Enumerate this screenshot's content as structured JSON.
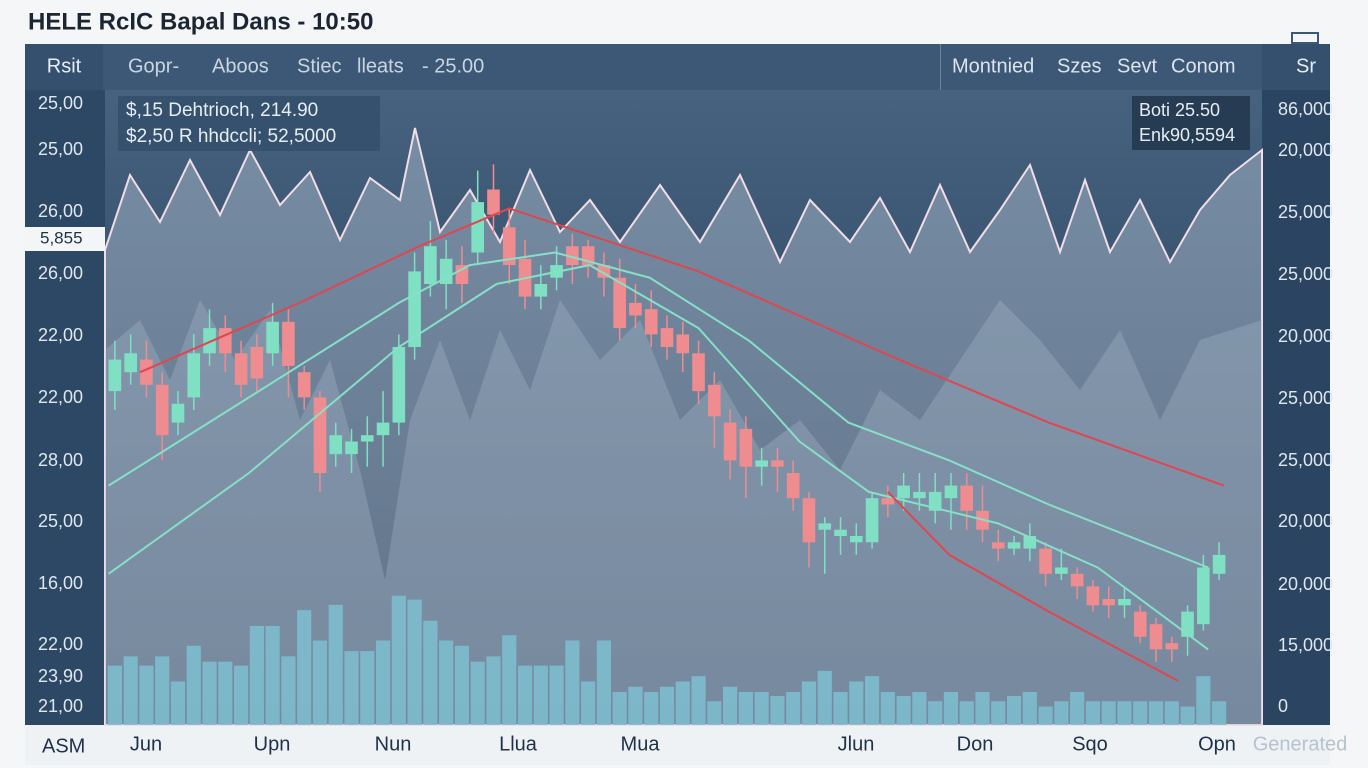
{
  "header": {
    "title": "HELE RcIC Bapal Dans - 10:50"
  },
  "toolbar": {
    "left": [
      "Rsit"
    ],
    "tools": [
      "Gopr-",
      "Aboos",
      "Stiec",
      "lleats",
      "- 25.00"
    ],
    "right": [
      "Montnied",
      "Szes",
      "Sevt",
      "Conom"
    ],
    "corner": "Sr"
  },
  "info_box": [
    "$,15 Dehtrioch, 214.90",
    "$2,50 R hhdccli; 52,5000"
  ],
  "quote_box": [
    "Boti 25.50",
    "Enk90,5594"
  ],
  "left_labels": [
    "25,00",
    "25,00",
    "26,00",
    "26,00",
    "22,00",
    "22,00",
    "28,00",
    "25,00",
    "16,00",
    "22,00",
    "23,90",
    "21,00"
  ],
  "price_marker": "5,855",
  "right_labels": [
    "86,000",
    "20,000",
    "25,000",
    "25,000",
    "20,000",
    "25,000",
    "25,000",
    "20,000",
    "20,000",
    "15,000",
    "0"
  ],
  "bottom_corner": "ASM",
  "x_labels": [
    "Jun",
    "Upn",
    "Nun",
    "Llua",
    "Mua",
    "Jlun",
    "Don",
    "Sqo",
    "Opn"
  ],
  "watermark": "Generated",
  "chart_data": {
    "type": "candlestick",
    "xlim": [
      -0.5,
      70.5
    ],
    "ylim": [
      0,
      100
    ],
    "up_color": "#7fe0c4",
    "down_color": "#ef8c8f",
    "open": [
      53,
      56,
      58,
      54,
      48,
      52,
      59,
      63,
      59,
      60,
      59,
      64,
      56,
      52,
      43,
      43,
      45,
      46,
      48,
      60,
      70,
      70,
      73,
      75,
      85,
      79,
      74,
      68,
      71,
      76,
      76,
      73,
      71,
      67,
      66,
      63,
      62,
      59,
      54,
      48,
      47,
      41,
      42,
      40,
      36,
      31,
      30,
      29,
      29,
      36,
      36,
      36,
      34,
      36,
      38,
      34,
      29,
      28,
      28,
      28,
      24,
      24,
      22,
      20,
      19,
      18,
      16,
      13,
      14,
      16,
      24
    ],
    "high": [
      61,
      62,
      61,
      56,
      53,
      62,
      66,
      65,
      61,
      62,
      67,
      66,
      57,
      53,
      48,
      47,
      49,
      53,
      62,
      75,
      80,
      77,
      76,
      88,
      89,
      82,
      77,
      73,
      76,
      78,
      77,
      75,
      74,
      70,
      69,
      65,
      64,
      61,
      56,
      50,
      49,
      44,
      44,
      42,
      37,
      33,
      33,
      32,
      37,
      38,
      40,
      40,
      40,
      40,
      40,
      38,
      31,
      30,
      32,
      29,
      28,
      25,
      23,
      22,
      22,
      19,
      17,
      14,
      19,
      27,
      29
    ],
    "low": [
      50,
      54,
      52,
      42,
      46,
      50,
      57,
      56,
      52,
      53,
      57,
      52,
      50,
      37,
      41,
      40,
      41,
      41,
      46,
      58,
      68,
      66,
      67,
      73,
      78,
      70,
      66,
      66,
      69,
      70,
      71,
      68,
      61,
      63,
      60,
      58,
      56,
      51,
      44,
      39,
      36,
      38,
      37,
      34,
      25,
      24,
      27,
      27,
      28,
      33,
      34,
      34,
      32,
      31,
      31,
      29,
      26,
      27,
      26,
      22,
      23,
      20,
      18,
      17,
      17,
      13,
      10,
      10,
      11,
      15,
      23
    ],
    "close": [
      58,
      59,
      54,
      46,
      51,
      59,
      63,
      59,
      54,
      55,
      64,
      57,
      52,
      40,
      46,
      45,
      46,
      48,
      60,
      72,
      76,
      74,
      70,
      83,
      81,
      73,
      68,
      70,
      73,
      73,
      73,
      71,
      63,
      65,
      62,
      60,
      59,
      53,
      49,
      42,
      41,
      42,
      41,
      36,
      29,
      32,
      31,
      30,
      36,
      35,
      38,
      37,
      37,
      38,
      34,
      31,
      28,
      29,
      30,
      24,
      25,
      22,
      19,
      19,
      20,
      14,
      12,
      12,
      18,
      25,
      27
    ],
    "lines": [
      {
        "color": "#86e0c8",
        "x": [
          -0.4,
          8.5,
          18,
          22.5,
          27.9,
          33.9,
          40.2,
          46.5,
          52.9,
          59.2,
          69.3
        ],
        "values": [
          38,
          52,
          67,
          73,
          75,
          71,
          61,
          48,
          42,
          35,
          25
        ]
      },
      {
        "color": "#86e0c8",
        "x": [
          -0.4,
          8.5,
          18,
          24.2,
          30.1,
          37,
          43.4,
          47.8,
          56,
          62.3,
          69.3
        ],
        "values": [
          24,
          40,
          60,
          70,
          73,
          63,
          45,
          37,
          32,
          25,
          12
        ]
      },
      {
        "color": "#e0464f",
        "x": [
          1.6,
          11.7,
          19.3,
          25,
          37,
          49.7,
          59.2,
          70.3
        ],
        "values": [
          56,
          67,
          76,
          82,
          72,
          58,
          48,
          38
        ]
      },
      {
        "color": "#e0464f",
        "x": [
          49,
          52.9,
          59.2,
          67.4
        ],
        "values": [
          37,
          27,
          18,
          7
        ]
      }
    ],
    "volume": {
      "color": "#7cbccd",
      "ylim": [
        0,
        100
      ],
      "values": [
        45,
        52,
        45,
        52,
        33,
        60,
        48,
        48,
        45,
        75,
        75,
        52,
        87,
        64,
        91,
        56,
        56,
        64,
        98,
        95,
        79,
        64,
        60,
        48,
        52,
        68,
        45,
        45,
        45,
        64,
        33,
        64,
        25,
        29,
        25,
        29,
        33,
        37,
        18,
        29,
        25,
        25,
        22,
        25,
        33,
        41,
        25,
        33,
        37,
        25,
        22,
        25,
        18,
        25,
        18,
        25,
        18,
        22,
        25,
        14,
        18,
        25,
        18,
        18,
        18,
        18,
        18,
        18,
        14,
        37,
        18
      ]
    }
  }
}
